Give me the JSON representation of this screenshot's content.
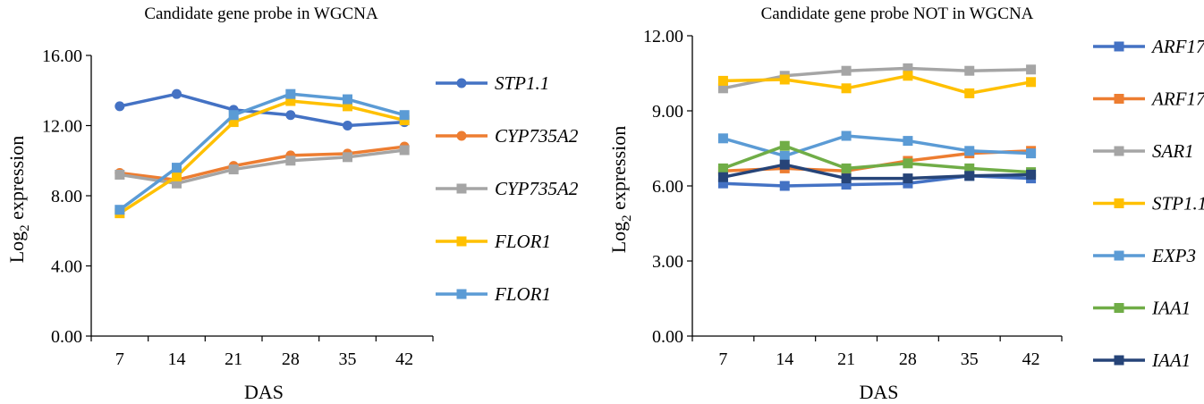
{
  "chart_data": [
    {
      "type": "line",
      "title": "Candidate gene probe in WGCNA",
      "xlabel": "DAS",
      "ylabel_main": "Log",
      "ylabel_sub": "2",
      "ylabel_rest": " expression",
      "x": [
        7,
        14,
        21,
        28,
        35,
        42
      ],
      "x_tick_labels": [
        "7",
        "14",
        "21",
        "28",
        "35",
        "42"
      ],
      "ylim": [
        0,
        16
      ],
      "y_ticks": [
        0,
        4,
        8,
        12,
        16
      ],
      "y_tick_labels": [
        "0.00",
        "4.00",
        "8.00",
        "12.00",
        "16.00"
      ],
      "grid": false,
      "legend_position": "right",
      "series": [
        {
          "name": "STP1.1",
          "color": "#4472C4",
          "marker": "circle",
          "values": [
            13.1,
            13.8,
            12.9,
            12.6,
            12.0,
            12.2
          ]
        },
        {
          "name": "CYP735A2",
          "color": "#ED7D31",
          "marker": "circle",
          "values": [
            9.3,
            8.9,
            9.7,
            10.3,
            10.4,
            10.8
          ]
        },
        {
          "name": "CYP735A2",
          "color": "#A5A5A5",
          "marker": "square",
          "values": [
            9.2,
            8.7,
            9.5,
            10.0,
            10.2,
            10.6
          ]
        },
        {
          "name": "FLOR1",
          "color": "#FFC000",
          "marker": "square",
          "values": [
            7.0,
            9.1,
            12.2,
            13.4,
            13.1,
            12.3
          ]
        },
        {
          "name": "FLOR1",
          "color": "#5B9BD5",
          "marker": "square",
          "values": [
            7.2,
            9.6,
            12.6,
            13.8,
            13.5,
            12.6
          ]
        }
      ]
    },
    {
      "type": "line",
      "title": "Candidate gene probe NOT in WGCNA",
      "xlabel": "DAS",
      "ylabel_main": "Log",
      "ylabel_sub": "2",
      "ylabel_rest": " expression",
      "x": [
        7,
        14,
        21,
        28,
        35,
        42
      ],
      "x_tick_labels": [
        "7",
        "14",
        "21",
        "28",
        "35",
        "42"
      ],
      "ylim": [
        0,
        12
      ],
      "y_ticks": [
        0,
        3,
        6,
        9,
        12
      ],
      "y_tick_labels": [
        "0.00",
        "3.00",
        "6.00",
        "9.00",
        "12.00"
      ],
      "grid": false,
      "legend_position": "right",
      "series": [
        {
          "name": "ARF17",
          "color": "#4472C4",
          "marker": "square",
          "values": [
            6.1,
            6.0,
            6.05,
            6.1,
            6.4,
            6.3
          ]
        },
        {
          "name": "ARF17",
          "color": "#ED7D31",
          "marker": "square",
          "values": [
            6.6,
            6.7,
            6.6,
            7.0,
            7.3,
            7.4
          ]
        },
        {
          "name": "SAR1",
          "color": "#A5A5A5",
          "marker": "square",
          "values": [
            9.9,
            10.4,
            10.6,
            10.7,
            10.6,
            10.65
          ]
        },
        {
          "name": "STP1.1",
          "color": "#FFC000",
          "marker": "square",
          "values": [
            10.2,
            10.25,
            9.9,
            10.4,
            9.7,
            10.15
          ]
        },
        {
          "name": "EXP3",
          "color": "#5B9BD5",
          "marker": "square",
          "values": [
            7.9,
            7.2,
            8.0,
            7.8,
            7.4,
            7.3
          ]
        },
        {
          "name": "IAA1",
          "color": "#70AD47",
          "marker": "square",
          "values": [
            6.7,
            7.6,
            6.7,
            6.9,
            6.7,
            6.55
          ]
        },
        {
          "name": "IAA1",
          "color": "#264478",
          "marker": "square",
          "values": [
            6.35,
            6.85,
            6.3,
            6.3,
            6.4,
            6.45
          ]
        }
      ]
    }
  ]
}
